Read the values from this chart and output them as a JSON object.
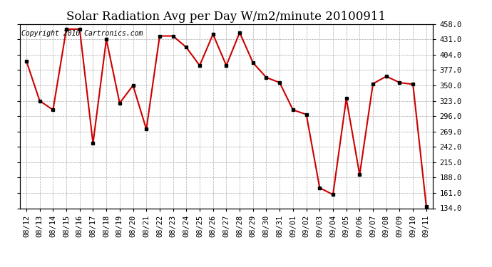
{
  "title": "Solar Radiation Avg per Day W/m2/minute 20100911",
  "copyright": "Copyright 2010 Cartronics.com",
  "dates": [
    "08/12",
    "08/13",
    "08/14",
    "08/15",
    "08/16",
    "08/17",
    "08/18",
    "08/19",
    "08/20",
    "08/21",
    "08/22",
    "08/23",
    "08/24",
    "08/25",
    "08/26",
    "08/27",
    "08/28",
    "08/29",
    "08/30",
    "08/31",
    "09/01",
    "09/02",
    "09/03",
    "09/04",
    "09/05",
    "09/06",
    "09/07",
    "09/08",
    "09/09",
    "09/10",
    "09/11"
  ],
  "values": [
    393,
    323,
    307,
    449,
    449,
    248,
    431,
    319,
    350,
    273,
    437,
    437,
    417,
    385,
    440,
    385,
    443,
    390,
    364,
    355,
    307,
    299,
    170,
    158,
    327,
    193,
    353,
    366,
    355,
    352,
    137
  ],
  "line_color": "#cc0000",
  "marker_color": "#000000",
  "bg_color": "#ffffff",
  "grid_color": "#aaaaaa",
  "ylim_min": 134.0,
  "ylim_max": 458.0,
  "ytick_values": [
    134.0,
    161.0,
    188.0,
    215.0,
    242.0,
    269.0,
    296.0,
    323.0,
    350.0,
    377.0,
    404.0,
    431.0,
    458.0
  ],
  "title_fontsize": 12,
  "copyright_fontsize": 7,
  "tick_fontsize": 7.5
}
